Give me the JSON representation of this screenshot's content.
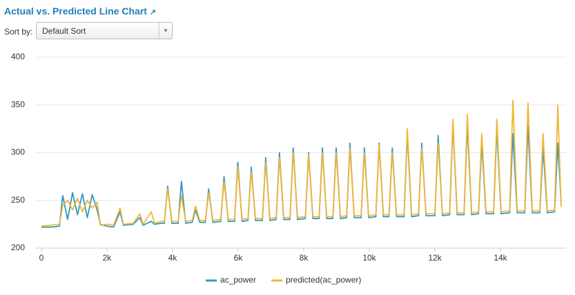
{
  "header": {
    "title": "Actual vs. Predicted Line Chart",
    "sort_label": "Sort by:",
    "sort_value": "Default Sort"
  },
  "chart_data": {
    "type": "line",
    "x": [
      0,
      300,
      550,
      650,
      800,
      950,
      1100,
      1250,
      1400,
      1550,
      1700,
      1800,
      2000,
      2200,
      2400,
      2500,
      2800,
      3000,
      3100,
      3350,
      3450,
      3650,
      3750,
      3850,
      3980,
      4170,
      4270,
      4400,
      4600,
      4700,
      4830,
      5000,
      5100,
      5230,
      5470,
      5570,
      5700,
      5890,
      5990,
      6120,
      6300,
      6400,
      6530,
      6740,
      6840,
      6970,
      7160,
      7260,
      7390,
      7580,
      7680,
      7810,
      8050,
      8150,
      8280,
      8470,
      8570,
      8700,
      8890,
      8990,
      9120,
      9310,
      9410,
      9540,
      9750,
      9850,
      9980,
      10200,
      10300,
      10430,
      10600,
      10700,
      10830,
      11060,
      11160,
      11290,
      11500,
      11600,
      11730,
      12000,
      12100,
      12230,
      12450,
      12550,
      12680,
      12890,
      12990,
      13120,
      13330,
      13430,
      13560,
      13790,
      13890,
      14020,
      14280,
      14380,
      14510,
      14740,
      14840,
      14970,
      15200,
      15300,
      15430,
      15650,
      15750,
      15850
    ],
    "series": [
      {
        "name": "ac_power",
        "color": "#2f98c4",
        "values": [
          222,
          222,
          223,
          255,
          230,
          258,
          235,
          257,
          232,
          256,
          240,
          225,
          223,
          222,
          238,
          224,
          225,
          232,
          224,
          228,
          225,
          226,
          226,
          265,
          226,
          226,
          270,
          226,
          227,
          240,
          227,
          227,
          262,
          227,
          228,
          275,
          228,
          228,
          290,
          228,
          229,
          285,
          229,
          229,
          295,
          229,
          230,
          300,
          230,
          230,
          305,
          230,
          231,
          300,
          231,
          231,
          305,
          231,
          231,
          305,
          231,
          232,
          310,
          232,
          232,
          305,
          232,
          233,
          310,
          233,
          233,
          305,
          233,
          233,
          320,
          233,
          234,
          310,
          234,
          234,
          318,
          234,
          235,
          330,
          235,
          235,
          330,
          235,
          236,
          310,
          236,
          236,
          325,
          236,
          237,
          320,
          237,
          237,
          328,
          237,
          237,
          305,
          237,
          238,
          310,
          248
        ]
      },
      {
        "name": "predicted(ac_power)",
        "color": "#f2b535",
        "values": [
          223,
          224,
          225,
          245,
          250,
          240,
          252,
          238,
          250,
          242,
          248,
          224,
          225,
          224,
          242,
          225,
          226,
          236,
          225,
          238,
          226,
          228,
          228,
          262,
          228,
          228,
          255,
          228,
          229,
          244,
          229,
          229,
          258,
          229,
          230,
          270,
          230,
          230,
          285,
          230,
          231,
          280,
          231,
          231,
          290,
          231,
          232,
          295,
          232,
          232,
          300,
          232,
          233,
          298,
          233,
          233,
          300,
          233,
          233,
          300,
          233,
          234,
          305,
          234,
          234,
          300,
          234,
          235,
          308,
          235,
          235,
          300,
          235,
          235,
          325,
          235,
          236,
          305,
          236,
          236,
          310,
          236,
          237,
          335,
          237,
          237,
          340,
          237,
          238,
          320,
          238,
          238,
          335,
          238,
          239,
          355,
          239,
          239,
          352,
          239,
          239,
          320,
          239,
          240,
          350,
          243
        ]
      }
    ],
    "xlim": [
      -168,
      16000
    ],
    "xticks": [
      0,
      {
        "value": 2000,
        "label": "2k"
      },
      {
        "value": 4000,
        "label": "4k"
      },
      {
        "value": 6000,
        "label": "6k"
      },
      {
        "value": 8000,
        "label": "8k"
      },
      {
        "value": 10000,
        "label": "10k"
      },
      {
        "value": 12000,
        "label": "12k"
      },
      {
        "value": 14000,
        "label": "14k"
      }
    ],
    "ylim": [
      200,
      400
    ],
    "yticks": [
      200,
      250,
      300,
      350,
      400
    ],
    "grid": true
  }
}
